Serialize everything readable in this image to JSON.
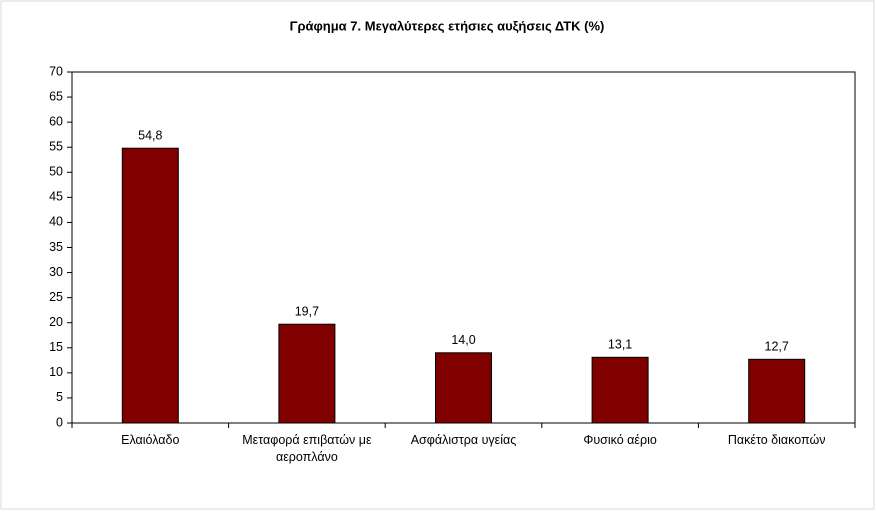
{
  "chart_data": {
    "type": "bar",
    "title": "Γράφημα 7. Μεγαλύτερες ετήσιες αυξήσεις ΔΤΚ (%)",
    "categories": [
      "Ελαιόλαδο",
      "Μεταφορά επιβατών με αεροπλάνο",
      "Ασφάλιστρα υγείας",
      "Φυσικό αέριο",
      "Πακέτο διακοπών"
    ],
    "values": [
      54.8,
      19.7,
      14.0,
      13.1,
      12.7
    ],
    "value_labels": [
      "54,8",
      "19,7",
      "14,0",
      "13,1",
      "12,7"
    ],
    "color": "#800000",
    "ylim": [
      0,
      70
    ],
    "yticks": [
      0,
      5,
      10,
      15,
      20,
      25,
      30,
      35,
      40,
      45,
      50,
      55,
      60,
      65,
      70
    ],
    "grid": false
  }
}
